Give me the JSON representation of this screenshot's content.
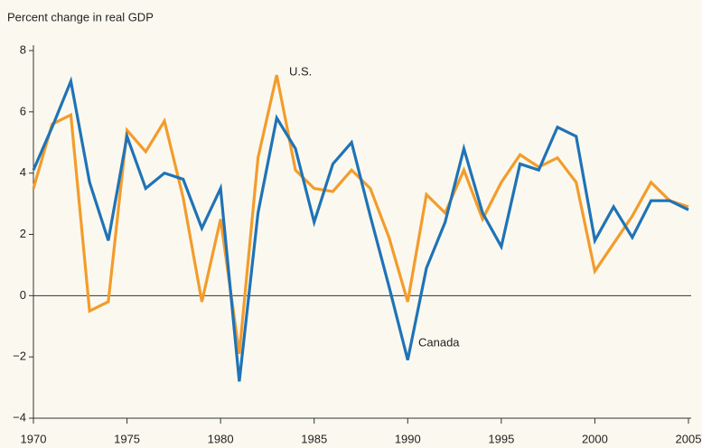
{
  "chart_data": {
    "type": "line",
    "y_axis_label": "Percent change in real GDP",
    "annotations": [
      "U.S.",
      "Canada"
    ],
    "x": [
      1970,
      1971,
      1972,
      1973,
      1974,
      1975,
      1976,
      1977,
      1978,
      1979,
      1980,
      1981,
      1982,
      1983,
      1984,
      1985,
      1986,
      1987,
      1988,
      1989,
      1990,
      1991,
      1992,
      1993,
      1994,
      1995,
      1996,
      1997,
      1998,
      1999,
      2000,
      2001,
      2002,
      2003,
      2004,
      2005
    ],
    "series": [
      {
        "name": "U.S.",
        "color": "#f39c2c",
        "values": [
          3.5,
          5.6,
          5.9,
          -0.5,
          -0.2,
          5.4,
          4.7,
          5.7,
          3.2,
          -0.2,
          2.5,
          -1.9,
          4.5,
          7.2,
          4.1,
          3.5,
          3.4,
          4.1,
          3.5,
          1.9,
          -0.2,
          3.3,
          2.7,
          4.1,
          2.5,
          3.7,
          4.6,
          4.2,
          4.5,
          3.7,
          0.8,
          1.7,
          2.6,
          3.7,
          3.1,
          2.9
        ]
      },
      {
        "name": "Canada",
        "color": "#1f73b7",
        "values": [
          4.1,
          5.5,
          7.0,
          3.7,
          1.8,
          5.2,
          3.5,
          4.0,
          3.8,
          2.2,
          3.5,
          -2.8,
          2.7,
          5.8,
          4.8,
          2.4,
          4.3,
          5.0,
          2.6,
          0.3,
          -2.1,
          0.9,
          2.4,
          4.8,
          2.7,
          1.6,
          4.3,
          4.1,
          5.5,
          5.2,
          1.8,
          2.9,
          1.9,
          3.1,
          3.1,
          2.8
        ]
      }
    ],
    "xlim": [
      1970,
      2005
    ],
    "xticks": [
      1970,
      1975,
      1980,
      1985,
      1990,
      1995,
      2000,
      2005
    ],
    "ylim": [
      -4,
      8
    ],
    "yticks": [
      {
        "value": -4,
        "label": "−4"
      },
      {
        "value": -2,
        "label": "−2"
      },
      0,
      2,
      4,
      6,
      8
    ]
  }
}
